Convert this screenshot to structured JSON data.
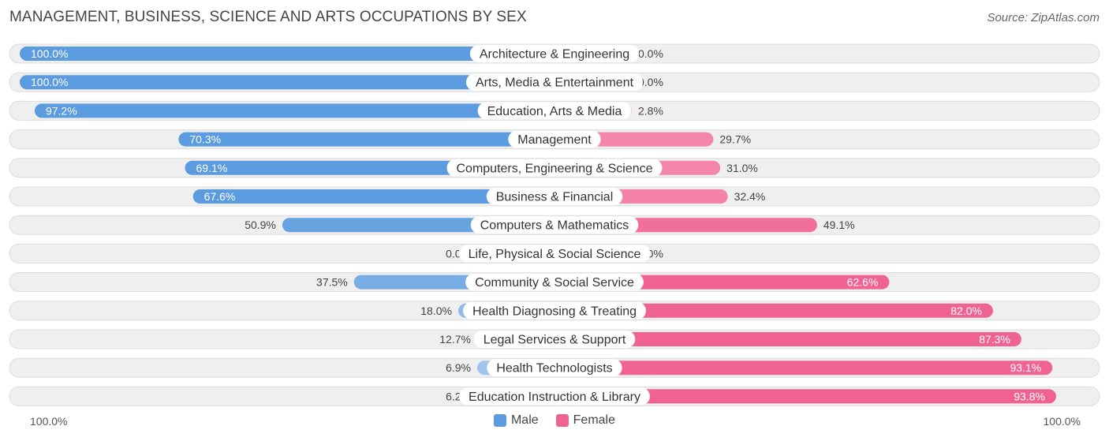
{
  "header": {
    "title": "MANAGEMENT, BUSINESS, SCIENCE AND ARTS OCCUPATIONS BY SEX",
    "source": "Source: ZipAtlas.com"
  },
  "axis": {
    "left_label": "100.0%",
    "right_label": "100.0%"
  },
  "legend": {
    "male_label": "Male",
    "female_label": "Female"
  },
  "colors": {
    "male_strong": "#5b9bdf",
    "male_light": "#a9c9ee",
    "female_strong": "#f06292",
    "female_light": "#f8a8c3"
  },
  "chart_data": {
    "type": "bar",
    "orientation": "diverging-horizontal",
    "title": "MANAGEMENT, BUSINESS, SCIENCE AND ARTS OCCUPATIONS BY SEX",
    "xlim": [
      -100,
      100
    ],
    "categories": [
      "Architecture & Engineering",
      "Arts, Media & Entertainment",
      "Education, Arts & Media",
      "Management",
      "Computers, Engineering & Science",
      "Business & Financial",
      "Computers & Mathematics",
      "Life, Physical & Social Science",
      "Community & Social Service",
      "Health Diagnosing & Treating",
      "Legal Services & Support",
      "Health Technologists",
      "Education Instruction & Library"
    ],
    "series": [
      {
        "name": "Male",
        "values": [
          100.0,
          100.0,
          97.2,
          70.3,
          69.1,
          67.6,
          50.9,
          0.0,
          37.5,
          18.0,
          12.7,
          6.9,
          6.2
        ],
        "labels": [
          "100.0%",
          "100.0%",
          "97.2%",
          "70.3%",
          "69.1%",
          "67.6%",
          "50.9%",
          "0.0%",
          "37.5%",
          "18.0%",
          "12.7%",
          "6.9%",
          "6.2%"
        ]
      },
      {
        "name": "Female",
        "values": [
          0.0,
          0.0,
          2.8,
          29.7,
          31.0,
          32.4,
          49.1,
          0.0,
          62.6,
          82.0,
          87.3,
          93.1,
          93.8
        ],
        "labels": [
          "0.0%",
          "0.0%",
          "2.8%",
          "29.7%",
          "31.0%",
          "32.4%",
          "49.1%",
          "0.0%",
          "62.6%",
          "82.0%",
          "87.3%",
          "93.1%",
          "93.8%"
        ]
      }
    ]
  }
}
